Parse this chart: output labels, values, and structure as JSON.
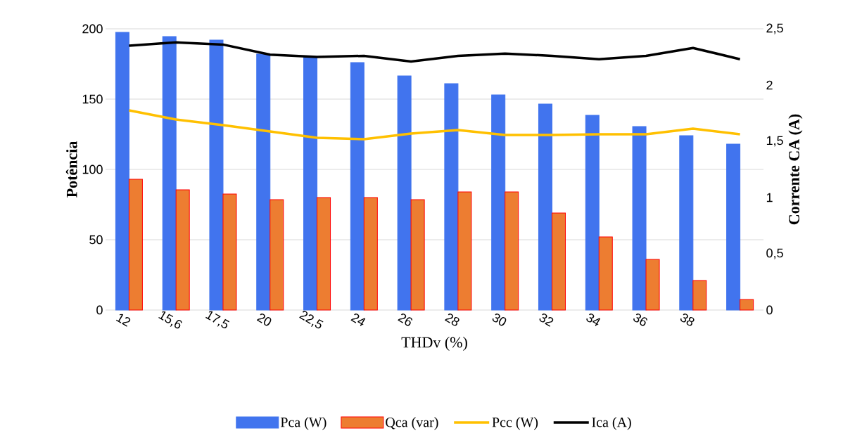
{
  "chart_data": {
    "type": "bar",
    "xlabel": "THDv (%)",
    "ylabel": "Potência",
    "y2label": "Corrente CA (A)",
    "categories": [
      "12",
      "15,6",
      "17,5",
      "20",
      "22,5",
      "24",
      "26",
      "28",
      "30",
      "32",
      "34",
      "36",
      "38",
      null
    ],
    "series": [
      {
        "name": "Pca (W)",
        "color": "#4174ee",
        "values": [
          197.5,
          194.5,
          192,
          182,
          180,
          176,
          166.5,
          161,
          153,
          146.5,
          138.5,
          130.5,
          124,
          118
        ]
      },
      {
        "name": "Qca (var)",
        "color": "#ed7d31",
        "values": [
          93,
          85.5,
          82.5,
          78.5,
          80,
          80,
          78.5,
          84,
          84,
          69,
          52,
          36,
          21,
          7.5
        ]
      },
      {
        "name": "Pcc (W)",
        "type": "line",
        "color": "#ffc000",
        "values": [
          142,
          135.5,
          131.5,
          127,
          122.5,
          121.5,
          125.5,
          128,
          124.5,
          124.5,
          125,
          125,
          129,
          125
        ]
      },
      {
        "name": "Ica (A)",
        "type": "line",
        "axis": "y2",
        "color": "#000000",
        "values": [
          2.35,
          2.38,
          2.36,
          2.27,
          2.25,
          2.26,
          2.21,
          2.26,
          2.28,
          2.26,
          2.23,
          2.26,
          2.33,
          2.23
        ]
      }
    ],
    "ylim": [
      0,
      200
    ],
    "yticks": [
      0,
      50,
      100,
      150,
      200
    ],
    "y2lim": [
      0,
      2.5
    ],
    "y2ticks": [
      0,
      {
        "value": 0.5,
        "label": "0,5"
      },
      1,
      {
        "value": 1.5,
        "label": "1,5"
      },
      2,
      {
        "value": 2.5,
        "label": "2,5"
      }
    ],
    "grid": "y",
    "legend": "bottom"
  }
}
